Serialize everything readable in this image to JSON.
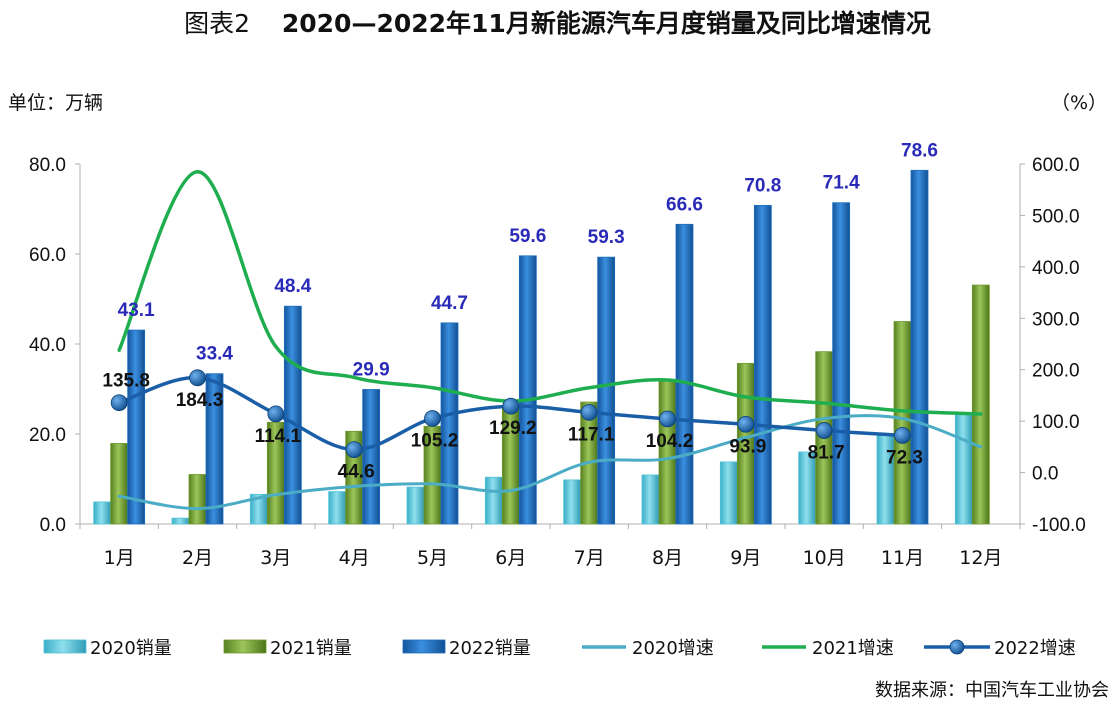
{
  "title": {
    "figure_label": "图表2",
    "text": "2020—2022年11月新能源汽车月度销量及同比增速情况"
  },
  "left_unit": "单位：万辆",
  "right_unit": "（%）",
  "source": "数据来源：中国汽车工业协会",
  "colors": {
    "s2020": "#4fc3d9",
    "s2021": "#6f9a2e",
    "s2022": "#1f6fc2",
    "g2020": "#4bacc6",
    "g2021": "#1fae4f",
    "g2022": "#1a5ea8",
    "label2022": "#2a2ab8"
  },
  "chart_data": {
    "type": "bar",
    "categories": [
      "1月",
      "2月",
      "3月",
      "4月",
      "5月",
      "6月",
      "7月",
      "8月",
      "9月",
      "10月",
      "11月",
      "12月"
    ],
    "series": [
      {
        "name": "2020销量",
        "axis": "left",
        "kind": "bar",
        "values": [
          4.9,
          1.3,
          6.6,
          7.2,
          8.2,
          10.4,
          9.8,
          10.9,
          13.8,
          16.0,
          20.0,
          24.8
        ]
      },
      {
        "name": "2021销量",
        "axis": "left",
        "kind": "bar",
        "values": [
          17.9,
          11.0,
          22.6,
          20.6,
          21.7,
          25.6,
          27.1,
          32.1,
          35.7,
          38.3,
          45.0,
          53.1
        ]
      },
      {
        "name": "2022销量",
        "axis": "left",
        "kind": "bar",
        "values": [
          43.1,
          33.4,
          48.4,
          29.9,
          44.7,
          59.6,
          59.3,
          66.6,
          70.8,
          71.4,
          78.6,
          null
        ],
        "data_labels": [
          "43.1",
          "33.4",
          "48.4",
          "29.9",
          "44.7",
          "59.6",
          "59.3",
          "66.6",
          "70.8",
          "71.4",
          "78.6"
        ]
      },
      {
        "name": "2020增速",
        "axis": "right",
        "kind": "line",
        "values": [
          -46,
          -70,
          -43,
          -27,
          -22,
          -35,
          20,
          27,
          68,
          105,
          105,
          50
        ]
      },
      {
        "name": "2021增速",
        "axis": "right",
        "kind": "line",
        "values": [
          238,
          585,
          245,
          185,
          165,
          139,
          165,
          180,
          147,
          135,
          120,
          114
        ]
      },
      {
        "name": "2022增速",
        "axis": "right",
        "kind": "line-marker",
        "values": [
          135.8,
          184.3,
          114.1,
          44.6,
          105.2,
          129.2,
          117.1,
          104.2,
          93.9,
          81.7,
          72.3,
          null
        ],
        "data_labels": [
          "135.8",
          "184.3",
          "114.1",
          "44.6",
          "105.2",
          "129.2",
          "117.1",
          "104.2",
          "93.9",
          "81.7",
          "72.3"
        ]
      }
    ],
    "ylim_left": [
      0,
      80
    ],
    "yticks_left": [
      "0.0",
      "20.0",
      "40.0",
      "60.0",
      "80.0"
    ],
    "ylim_right": [
      -100,
      600
    ],
    "yticks_right": [
      "-100.0",
      "0.0",
      "100.0",
      "200.0",
      "300.0",
      "400.0",
      "500.0",
      "600.0"
    ],
    "grid": false,
    "legend_position": "bottom"
  }
}
